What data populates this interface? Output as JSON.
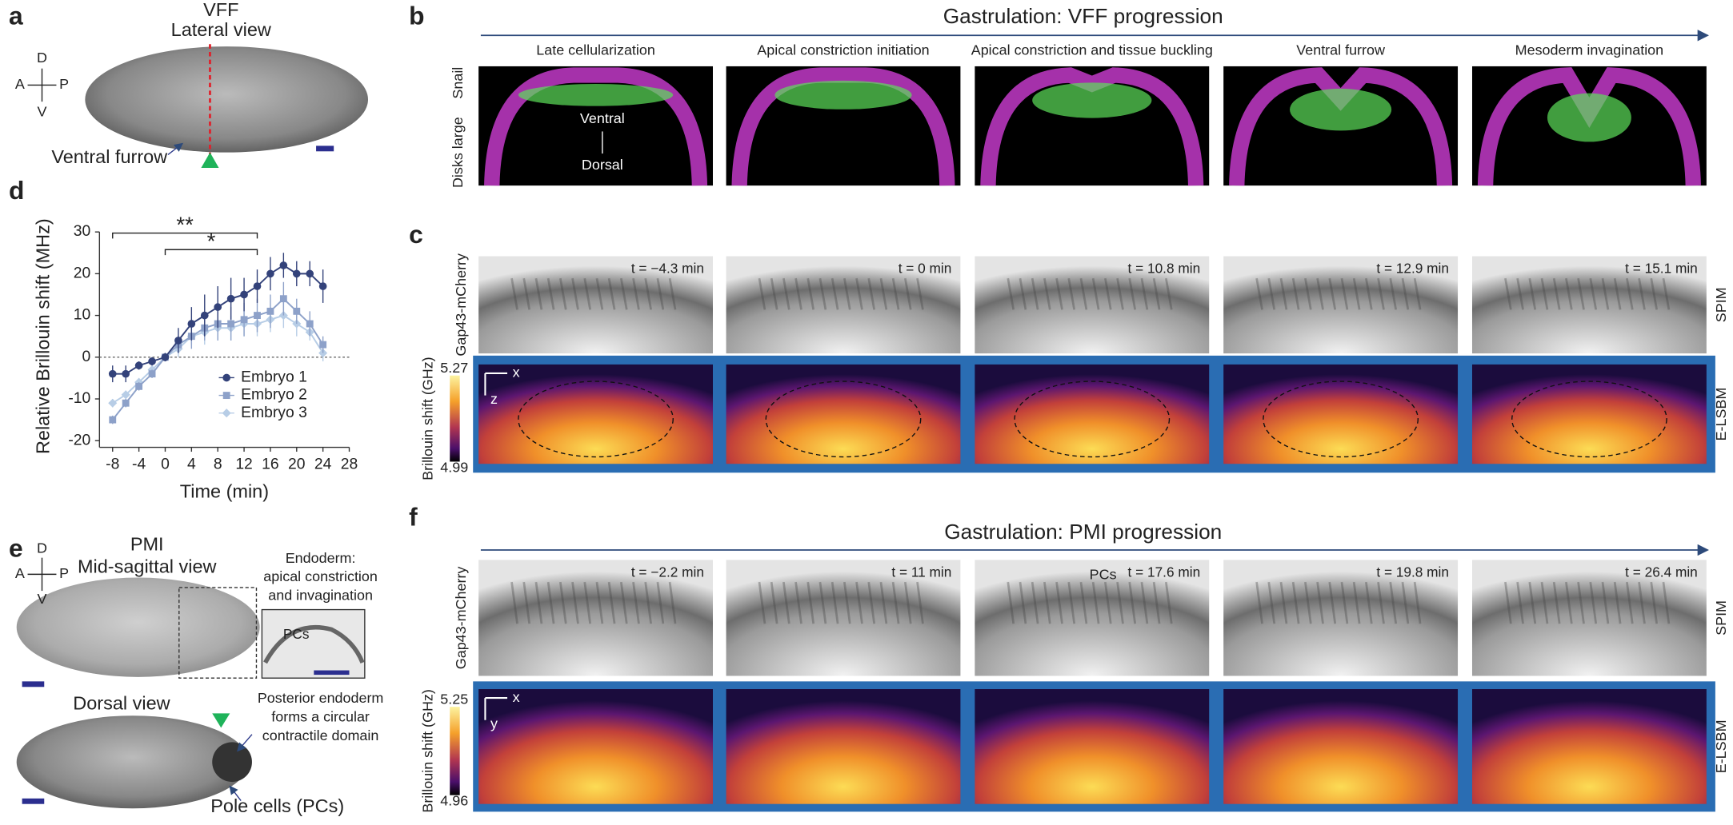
{
  "panel_labels": [
    "a",
    "b",
    "c",
    "d",
    "e",
    "f"
  ],
  "panel_a": {
    "title": "VFF",
    "subtitle": "Lateral view",
    "axes": {
      "dorsal": "D",
      "anterior": "A",
      "posterior": "P",
      "ventral": "V"
    },
    "annotation": "Ventral furrow"
  },
  "panel_b": {
    "title": "Gastrulation: VFF progression",
    "stages": [
      "Late cellularization",
      "Apical constriction initiation",
      "Apical constriction and tissue buckling",
      "Ventral furrow",
      "Mesoderm invagination"
    ],
    "stain_1": "Disks large",
    "stain_2": "Snail",
    "ventral": "Ventral",
    "dorsal": "Dorsal"
  },
  "panel_c": {
    "times": [
      "t = −4.3 min",
      "t = 0 min",
      "t = 10.8 min",
      "t = 12.9 min",
      "t = 15.1 min"
    ],
    "left_label": "Gap43-mCherry",
    "row_labels": [
      "SPIM",
      "E-LSBM"
    ],
    "colorbar_label": "Brillouin shift (GHz)",
    "colorbar_max": "5.27",
    "colorbar_min": "4.99",
    "axis_h": "x",
    "axis_v": "z"
  },
  "chart_data": {
    "type": "line",
    "ylabel": "Relative Brillouin shift (MHz)",
    "xlabel": "Time (min)",
    "x": [
      -8,
      -6,
      -4,
      -2,
      0,
      2,
      4,
      6,
      8,
      10,
      12,
      14,
      16,
      18,
      20,
      22,
      24
    ],
    "xlim": [
      -10,
      28
    ],
    "xticks": [
      -8,
      -4,
      0,
      4,
      8,
      12,
      16,
      20,
      24,
      28
    ],
    "ylim": [
      -20,
      30
    ],
    "yticks": [
      -20,
      -10,
      0,
      10,
      20,
      30
    ],
    "legend": "lower right",
    "series": [
      {
        "name": "Embryo 1",
        "color": "#33427a",
        "marker": "circle",
        "values": [
          -4,
          -4,
          -2,
          -1,
          0,
          4,
          8,
          10,
          12,
          14,
          15,
          17,
          20,
          22,
          20,
          20,
          17
        ],
        "errors": [
          2,
          2,
          1,
          1,
          1,
          3,
          4,
          5,
          5,
          5,
          4,
          4,
          4,
          3,
          3,
          3,
          4
        ]
      },
      {
        "name": "Embryo 2",
        "color": "#8da1c9",
        "marker": "square",
        "values": [
          -15,
          -11,
          -7,
          -4,
          0,
          3,
          5,
          7,
          8,
          8,
          9,
          10,
          11,
          14,
          11,
          8,
          3
        ],
        "errors": [
          1,
          1,
          1,
          1,
          1,
          2,
          3,
          3,
          4,
          4,
          4,
          4,
          4,
          4,
          3,
          3,
          2
        ]
      },
      {
        "name": "Embryo 3",
        "color": "#b7cde6",
        "marker": "diamond",
        "values": [
          -11,
          -9,
          -6,
          -3,
          0,
          2,
          5,
          6,
          7,
          7,
          8,
          8,
          9,
          10,
          8,
          6,
          1
        ],
        "errors": [
          1,
          1,
          1,
          1,
          1,
          2,
          2,
          3,
          3,
          3,
          3,
          3,
          3,
          3,
          3,
          2,
          2
        ]
      }
    ],
    "annotations": [
      {
        "text": "**",
        "x_start": -8,
        "x_end": 14
      },
      {
        "text": "*",
        "x_start": 0,
        "x_end": 14
      }
    ]
  },
  "panel_e": {
    "title": "PMI",
    "subtitle": "Mid-sagittal view",
    "axes": {
      "dorsal": "D",
      "anterior": "A",
      "posterior": "P",
      "ventral": "V"
    },
    "inset_text": [
      "Endoderm:",
      "apical constriction",
      "and invagination"
    ],
    "inset_label": "PCs",
    "dorsal_title": "Dorsal view",
    "domain_text": [
      "Posterior endoderm",
      "forms a circular",
      "contractile domain"
    ],
    "pole_cells": "Pole cells (PCs)"
  },
  "panel_f": {
    "title": "Gastrulation: PMI progression",
    "times": [
      "t = −2.2 min",
      "t = 11 min",
      "t = 17.6 min",
      "t = 19.8 min",
      "t = 26.4 min"
    ],
    "pcs_label": "PCs",
    "left_label": "Gap43-mCherry",
    "row_labels": [
      "SPIM",
      "E-LSBM"
    ],
    "colorbar_label": "Brillouin shift (GHz)",
    "colorbar_max": "5.25",
    "colorbar_min": "4.96",
    "axis_h": "x",
    "axis_v": "y"
  }
}
